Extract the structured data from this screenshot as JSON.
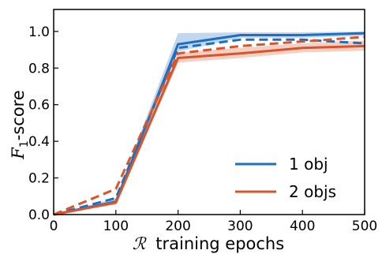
{
  "chart_data": {
    "type": "line",
    "xlabel_symbol": "ℛ",
    "xlabel_text": "training epochs",
    "ylabel_main": "F",
    "ylabel_sub": "1",
    "ylabel_suffix": "-score",
    "x": [
      0,
      100,
      200,
      300,
      400,
      500
    ],
    "xlim": [
      0,
      500
    ],
    "ylim": [
      0,
      1.12
    ],
    "xticks": [
      "0",
      "100",
      "200",
      "300",
      "400",
      "500"
    ],
    "yticks": [
      "0.0",
      "0.2",
      "0.4",
      "0.6",
      "0.8",
      "1.0"
    ],
    "ytick_values": [
      0,
      0.2,
      0.4,
      0.6,
      0.8,
      1.0
    ],
    "grid": false,
    "legend_position": "bottom-right",
    "series": [
      {
        "name": "1 obj",
        "color": "#1f6fbf",
        "solid": [
          0.0,
          0.07,
          0.93,
          0.98,
          0.98,
          0.99
        ],
        "dashed": [
          0.0,
          0.09,
          0.91,
          0.955,
          0.955,
          0.935
        ],
        "band_low": [
          0.0,
          0.06,
          0.89,
          0.965,
          0.965,
          0.975
        ],
        "band_high": [
          0.0,
          0.09,
          0.99,
          0.995,
          0.995,
          1.0
        ]
      },
      {
        "name": "2 objs",
        "color": "#d9542a",
        "solid": [
          0.0,
          0.065,
          0.855,
          0.88,
          0.91,
          0.92
        ],
        "dashed": [
          0.0,
          0.14,
          0.88,
          0.92,
          0.945,
          0.97
        ],
        "band_low": [
          0.0,
          0.055,
          0.83,
          0.855,
          0.885,
          0.895
        ],
        "band_high": [
          0.0,
          0.08,
          0.885,
          0.91,
          0.935,
          0.95
        ]
      }
    ]
  }
}
